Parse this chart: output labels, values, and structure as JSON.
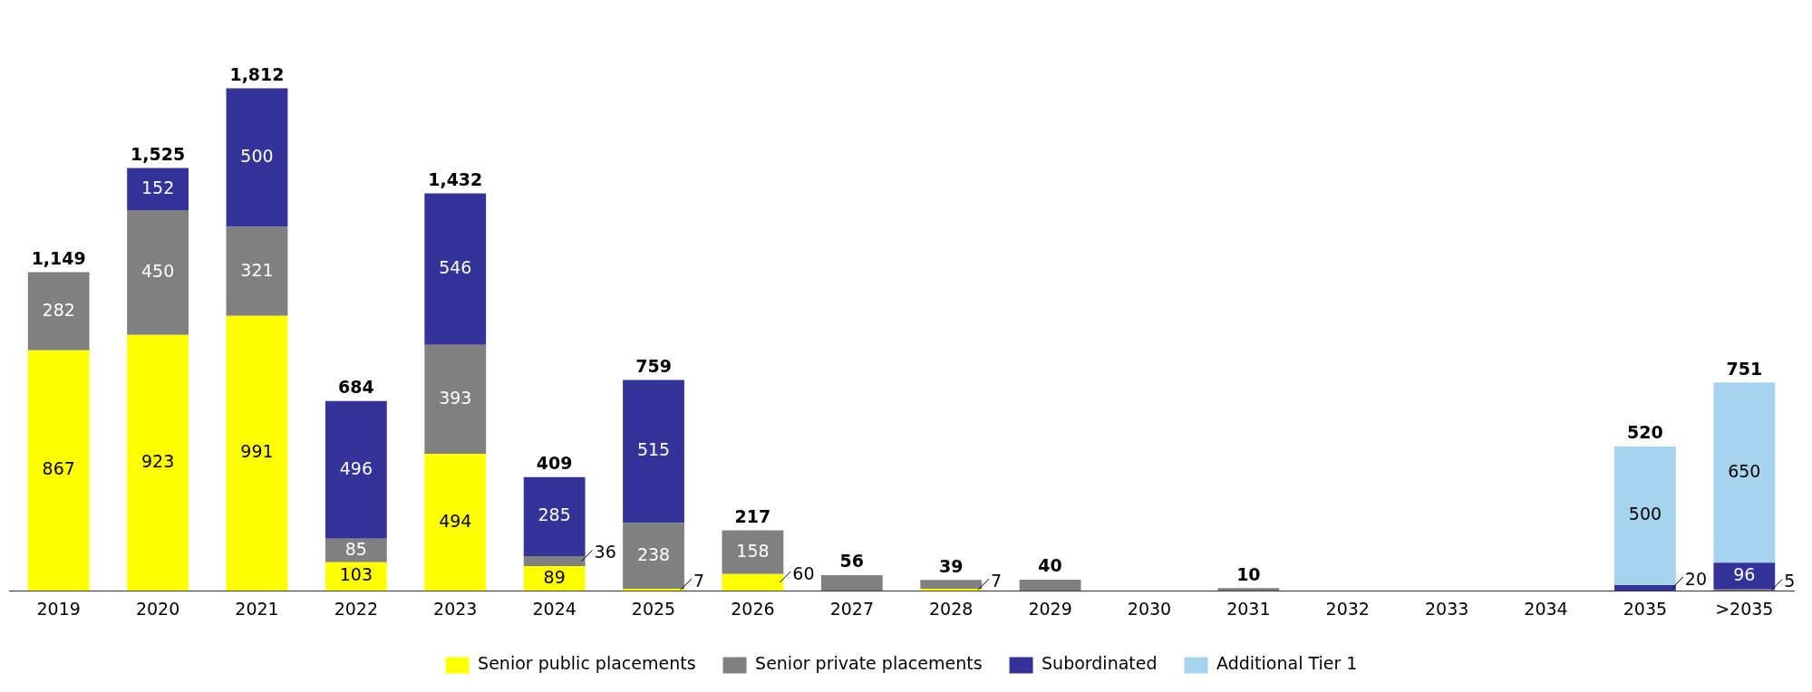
{
  "chart_data": {
    "type": "bar",
    "stacked": true,
    "categories": [
      "2019",
      "2020",
      "2021",
      "2022",
      "2023",
      "2024",
      "2025",
      "2026",
      "2027",
      "2028",
      "2029",
      "2030",
      "2031",
      "2032",
      "2033",
      "2034",
      "2035",
      ">2035"
    ],
    "series": [
      {
        "name": "Senior public placements",
        "color": "#ffff00",
        "values": [
          867,
          923,
          991,
          103,
          494,
          89,
          7,
          60,
          null,
          7,
          null,
          null,
          null,
          null,
          null,
          null,
          null,
          null
        ],
        "value_labels": [
          "867",
          "923",
          "991",
          "103",
          "494",
          "89",
          "7",
          "60",
          null,
          "7",
          null,
          null,
          null,
          null,
          null,
          null,
          null,
          null
        ]
      },
      {
        "name": "Senior private placements",
        "color": "#808080",
        "values": [
          282,
          450,
          321,
          85,
          393,
          36,
          238,
          158,
          56,
          32,
          40,
          null,
          10,
          null,
          null,
          null,
          null,
          5
        ],
        "value_labels": [
          "282",
          "450",
          "321",
          "85",
          "393",
          "36",
          "238",
          "158",
          null,
          null,
          null,
          null,
          null,
          null,
          null,
          null,
          null,
          "5"
        ]
      },
      {
        "name": "Subordinated",
        "color": "#333399",
        "values": [
          null,
          152,
          500,
          496,
          546,
          285,
          515,
          null,
          null,
          null,
          null,
          null,
          null,
          null,
          null,
          null,
          20,
          96
        ],
        "value_labels": [
          null,
          "152",
          "500",
          "496",
          "546",
          "285",
          "515",
          null,
          null,
          null,
          null,
          null,
          null,
          null,
          null,
          null,
          "20",
          "96"
        ]
      },
      {
        "name": "Additional Tier 1",
        "color": "#a6d4ee",
        "values": [
          null,
          null,
          null,
          null,
          null,
          null,
          null,
          null,
          null,
          null,
          null,
          null,
          null,
          null,
          null,
          null,
          500,
          650
        ],
        "value_labels": [
          null,
          null,
          null,
          null,
          null,
          null,
          null,
          null,
          null,
          null,
          null,
          null,
          null,
          null,
          null,
          null,
          "500",
          "650"
        ]
      }
    ],
    "totals": [
      "1,149",
      "1,525",
      "1,812",
      "684",
      "1,432",
      "409",
      "759",
      "217",
      "56",
      "39",
      "40",
      null,
      "10",
      null,
      null,
      null,
      "520",
      "751"
    ],
    "grid": false,
    "legend": "bottom"
  }
}
